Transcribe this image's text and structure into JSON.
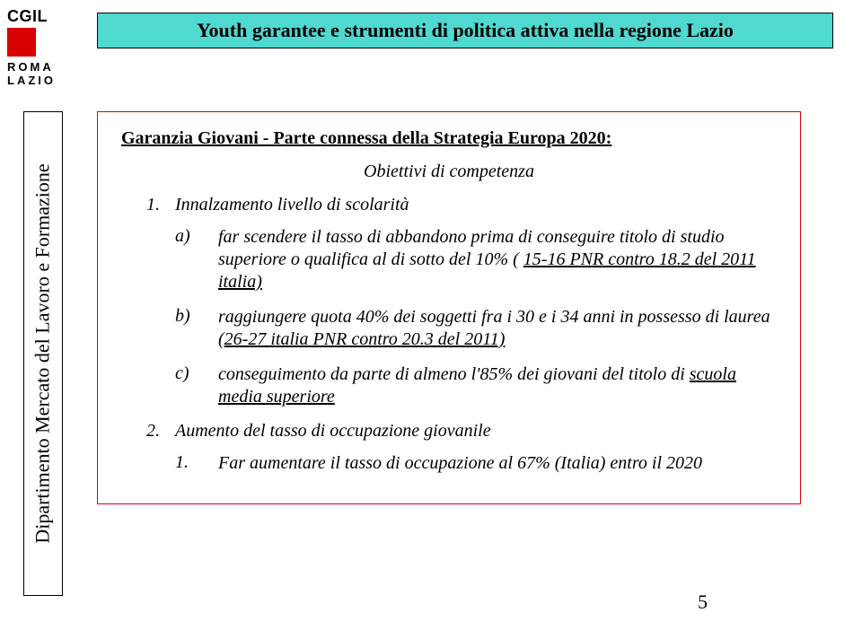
{
  "logo": {
    "text": "CGIL",
    "sub_line1": "ROMA",
    "sub_line2": "LAZIO"
  },
  "title": "Youth garantee e strumenti di politica attiva nella regione Lazio",
  "sidebar": "Dipartimento Mercato del Lavoro e Formazione",
  "content": {
    "heading": "Garanzia Giovani  - Parte connessa della Strategia Europa 2020:",
    "subheading": "Obiettivi di competenza",
    "item1": {
      "num": "1.",
      "text": "Innalzamento livello di scolarità"
    },
    "a": {
      "letter": "a)",
      "prefix": "far scendere il tasso di abbandono prima di conseguire titolo di studio superiore o qualifica al di sotto del 10% ( ",
      "u": "15-16 PNR contro 18.2 del 2011 italia)"
    },
    "b": {
      "letter": "b)",
      "prefix": "raggiungere quota 40% dei soggetti fra i 30 e i 34 anni in possesso di laurea (",
      "u": "26-27 italia PNR contro 20.3 del 2011)"
    },
    "c": {
      "letter": "c)",
      "prefix": "conseguimento da parte di almeno l'85% dei giovani del titolo di ",
      "u": "scuola media superiore"
    },
    "item2": {
      "num": "2.",
      "text": "Aumento del tasso di occupazione giovanile"
    },
    "inner1": {
      "num": "1.",
      "text": "Far aumentare il tasso di occupazione al 67% (Italia) entro il 2020"
    }
  },
  "page_number": "5",
  "colors": {
    "red": "#d90000",
    "teal": "#4fd9d0",
    "black": "#000000",
    "white": "#ffffff"
  }
}
